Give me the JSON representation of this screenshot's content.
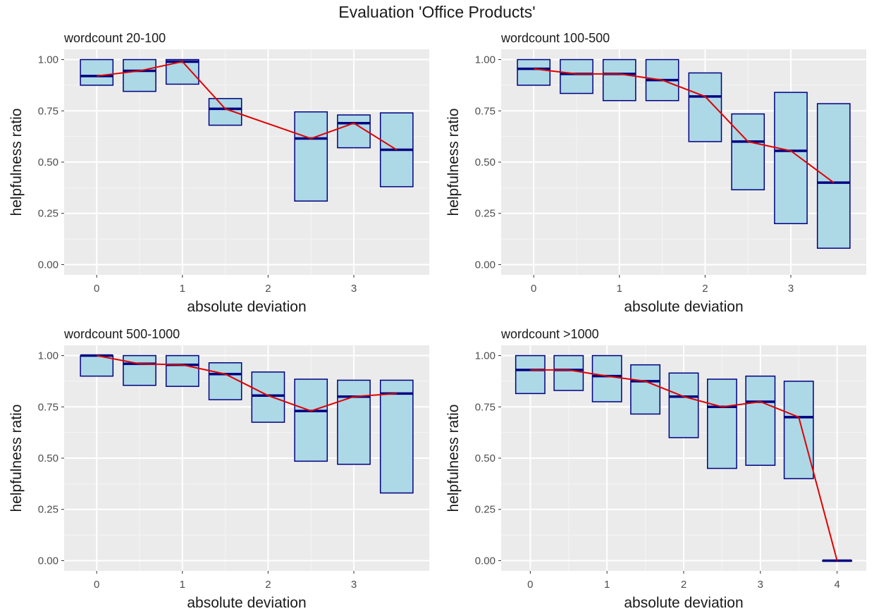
{
  "title": "Evaluation 'Office Products'",
  "chart_data": [
    {
      "type": "box",
      "title": "wordcount 20-100",
      "xlabel": "absolute deviation",
      "ylabel": "helpfulness ratio",
      "xlim": [
        -0.38,
        3.88
      ],
      "ylim": [
        -0.05,
        1.05
      ],
      "xticks": [
        0,
        1,
        2,
        3
      ],
      "yticks": [
        0,
        0.25,
        0.5,
        0.75,
        1.0
      ],
      "ytick_labels": [
        "0.00",
        "0.25",
        "0.50",
        "0.75",
        "1.00"
      ],
      "boxes": [
        {
          "x": 0,
          "q1": 0.875,
          "median": 0.92,
          "q3": 1.0
        },
        {
          "x": 0.5,
          "q1": 0.845,
          "median": 0.945,
          "q3": 1.0
        },
        {
          "x": 1,
          "q1": 0.88,
          "median": 0.99,
          "q3": 1.0
        },
        {
          "x": 1.5,
          "q1": 0.68,
          "median": 0.76,
          "q3": 0.81
        },
        {
          "x": 2.5,
          "q1": 0.31,
          "median": 0.615,
          "q3": 0.745
        },
        {
          "x": 3,
          "q1": 0.57,
          "median": 0.69,
          "q3": 0.73
        },
        {
          "x": 3.5,
          "q1": 0.38,
          "median": 0.56,
          "q3": 0.74
        }
      ],
      "line": {
        "x": [
          0,
          0.5,
          1,
          1.5,
          2.5,
          3,
          3.5
        ],
        "y": [
          0.92,
          0.945,
          0.99,
          0.76,
          0.615,
          0.69,
          0.56
        ]
      }
    },
    {
      "type": "box",
      "title": "wordcount 100-500",
      "xlabel": "absolute deviation",
      "ylabel": "helpfulness ratio",
      "xlim": [
        -0.38,
        3.88
      ],
      "ylim": [
        -0.05,
        1.05
      ],
      "xticks": [
        0,
        1,
        2,
        3
      ],
      "yticks": [
        0,
        0.25,
        0.5,
        0.75,
        1.0
      ],
      "ytick_labels": [
        "0.00",
        "0.25",
        "0.50",
        "0.75",
        "1.00"
      ],
      "boxes": [
        {
          "x": 0,
          "q1": 0.875,
          "median": 0.955,
          "q3": 1.0
        },
        {
          "x": 0.5,
          "q1": 0.835,
          "median": 0.93,
          "q3": 1.0
        },
        {
          "x": 1,
          "q1": 0.8,
          "median": 0.93,
          "q3": 1.0
        },
        {
          "x": 1.5,
          "q1": 0.8,
          "median": 0.9,
          "q3": 1.0
        },
        {
          "x": 2,
          "q1": 0.6,
          "median": 0.82,
          "q3": 0.935
        },
        {
          "x": 2.5,
          "q1": 0.365,
          "median": 0.6,
          "q3": 0.735
        },
        {
          "x": 3,
          "q1": 0.2,
          "median": 0.555,
          "q3": 0.84
        },
        {
          "x": 3.5,
          "q1": 0.08,
          "median": 0.4,
          "q3": 0.785
        }
      ],
      "line": {
        "x": [
          0,
          0.5,
          1,
          1.5,
          2,
          2.5,
          3,
          3.5
        ],
        "y": [
          0.955,
          0.93,
          0.93,
          0.9,
          0.82,
          0.6,
          0.555,
          0.4
        ]
      }
    },
    {
      "type": "box",
      "title": "wordcount 500-1000",
      "xlabel": "absolute deviation",
      "ylabel": "helpfulness ratio",
      "xlim": [
        -0.38,
        3.88
      ],
      "ylim": [
        -0.05,
        1.05
      ],
      "xticks": [
        0,
        1,
        2,
        3
      ],
      "yticks": [
        0,
        0.25,
        0.5,
        0.75,
        1.0
      ],
      "ytick_labels": [
        "0.00",
        "0.25",
        "0.50",
        "0.75",
        "1.00"
      ],
      "boxes": [
        {
          "x": 0,
          "q1": 0.9,
          "median": 1.0,
          "q3": 1.0
        },
        {
          "x": 0.5,
          "q1": 0.855,
          "median": 0.96,
          "q3": 1.0
        },
        {
          "x": 1,
          "q1": 0.85,
          "median": 0.955,
          "q3": 1.0
        },
        {
          "x": 1.5,
          "q1": 0.785,
          "median": 0.91,
          "q3": 0.965
        },
        {
          "x": 2,
          "q1": 0.675,
          "median": 0.805,
          "q3": 0.92
        },
        {
          "x": 2.5,
          "q1": 0.485,
          "median": 0.73,
          "q3": 0.885
        },
        {
          "x": 3,
          "q1": 0.47,
          "median": 0.8,
          "q3": 0.88
        },
        {
          "x": 3.5,
          "q1": 0.33,
          "median": 0.815,
          "q3": 0.88
        }
      ],
      "line": {
        "x": [
          0,
          0.5,
          1,
          1.5,
          2,
          2.5,
          3,
          3.5
        ],
        "y": [
          1.0,
          0.96,
          0.955,
          0.91,
          0.805,
          0.73,
          0.8,
          0.815
        ]
      }
    },
    {
      "type": "box",
      "title": "wordcount >1000",
      "xlabel": "absolute deviation",
      "ylabel": "helpfulness ratio",
      "xlim": [
        -0.38,
        4.38
      ],
      "ylim": [
        -0.05,
        1.05
      ],
      "xticks": [
        0,
        1,
        2,
        3,
        4
      ],
      "yticks": [
        0,
        0.25,
        0.5,
        0.75,
        1.0
      ],
      "ytick_labels": [
        "0.00",
        "0.25",
        "0.50",
        "0.75",
        "1.00"
      ],
      "boxes": [
        {
          "x": 0,
          "q1": 0.815,
          "median": 0.93,
          "q3": 1.0
        },
        {
          "x": 0.5,
          "q1": 0.83,
          "median": 0.93,
          "q3": 1.0
        },
        {
          "x": 1,
          "q1": 0.775,
          "median": 0.9,
          "q3": 1.0
        },
        {
          "x": 1.5,
          "q1": 0.715,
          "median": 0.875,
          "q3": 0.955
        },
        {
          "x": 2,
          "q1": 0.6,
          "median": 0.8,
          "q3": 0.915
        },
        {
          "x": 2.5,
          "q1": 0.45,
          "median": 0.75,
          "q3": 0.885
        },
        {
          "x": 3,
          "q1": 0.465,
          "median": 0.775,
          "q3": 0.9
        },
        {
          "x": 3.5,
          "q1": 0.4,
          "median": 0.7,
          "q3": 0.875
        },
        {
          "x": 4,
          "q1": 0.0,
          "median": 0.0,
          "q3": 0.0
        }
      ],
      "line": {
        "x": [
          0,
          0.5,
          1,
          1.5,
          2,
          2.5,
          3,
          3.5,
          4
        ],
        "y": [
          0.93,
          0.93,
          0.9,
          0.875,
          0.8,
          0.75,
          0.775,
          0.7,
          0.0
        ]
      }
    }
  ],
  "colors": {
    "panel_bg": "#EBEBEB",
    "grid_major": "#FFFFFF",
    "box_fill": "#ADD8E6",
    "box_border": "#000080",
    "median": "#000080",
    "line": "#E00000",
    "text": "#1A1A1A",
    "tick_text": "#4D4D4D"
  }
}
